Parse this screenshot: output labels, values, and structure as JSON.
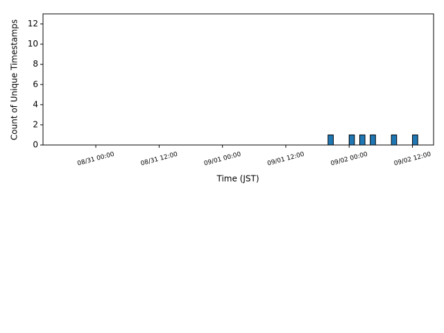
{
  "chart_data": {
    "type": "histogram",
    "x_label": "Time (JST)",
    "y_label": "Count of Unique Timestamps",
    "bins": [
      "09/01 20:00",
      "09/01 21:00",
      "09/01 22:00",
      "09/01 23:00",
      "09/02 00:00",
      "09/02 01:00",
      "09/02 02:00",
      "09/02 03:00",
      "09/02 04:00",
      "09/02 05:00",
      "09/02 06:00",
      "09/02 07:00",
      "09/02 08:00",
      "09/02 09:00",
      "09/02 10:00",
      "09/02 11:00",
      "09/02 12:00",
      "09/02 13:00"
    ],
    "values": [
      1,
      0,
      0,
      0,
      1,
      0,
      1,
      0,
      1,
      0,
      0,
      0,
      1,
      0,
      0,
      0,
      1
    ],
    "color": "#1f77b4",
    "edgecolor": "#000000",
    "xlim": [
      "08/30 14:00",
      "09/02 16:00"
    ],
    "xticks": [
      "08/31 00:00",
      "08/31 12:00",
      "09/01 00:00",
      "09/01 12:00",
      "09/02 00:00",
      "09/02 12:00"
    ],
    "ylim": [
      0,
      13
    ],
    "yticks": [
      0,
      2,
      4,
      6,
      8,
      10,
      12
    ]
  }
}
